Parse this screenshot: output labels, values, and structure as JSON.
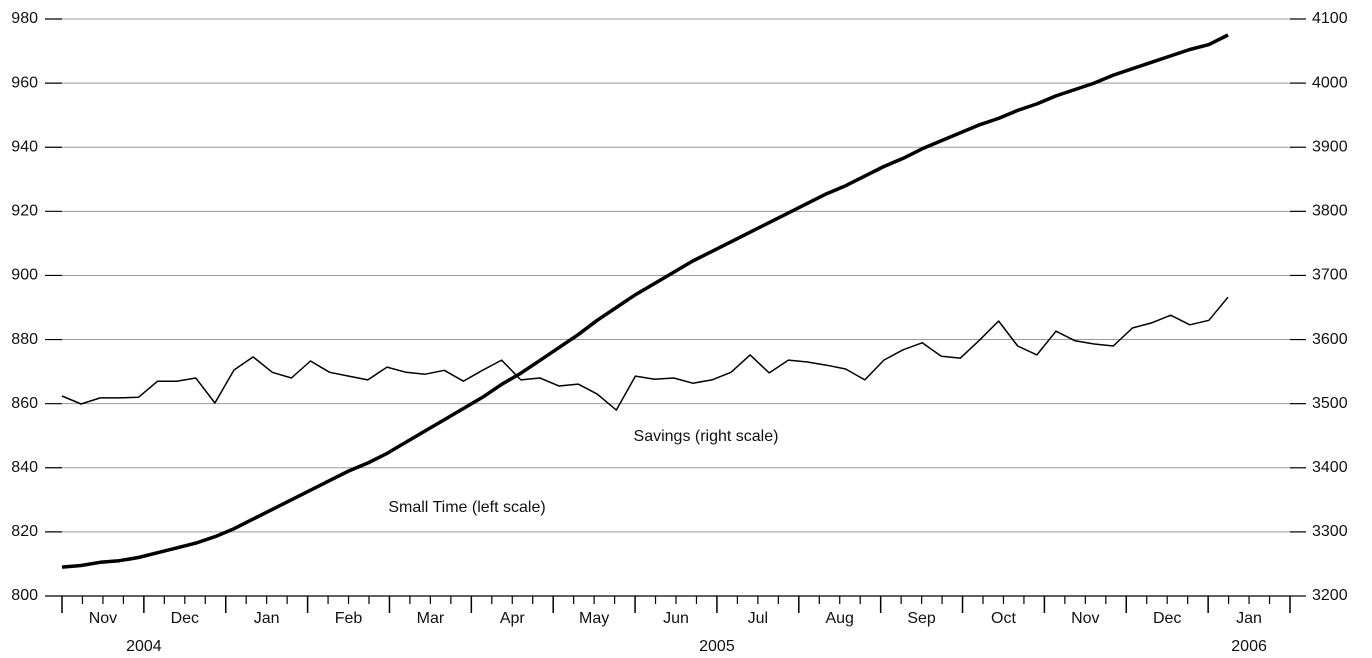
{
  "chart_data": {
    "type": "line",
    "categories": [
      null,
      null,
      null,
      null,
      null,
      null,
      null,
      null,
      null,
      null,
      null,
      null,
      null,
      null,
      null,
      null,
      null,
      null,
      null,
      null,
      null,
      null,
      null,
      null,
      null,
      null,
      null,
      null,
      null,
      null,
      null,
      null,
      null,
      null,
      null,
      null,
      null,
      null,
      null,
      null,
      null,
      null,
      null,
      null,
      null,
      null,
      null,
      null,
      null,
      null,
      null,
      null,
      null,
      null,
      null,
      null,
      null,
      null,
      null,
      null,
      null,
      null
    ],
    "x_months": [
      "Nov",
      "Dec",
      "Jan",
      "Feb",
      "Mar",
      "Apr",
      "May",
      "Jun",
      "Jul",
      "Aug",
      "Sep",
      "Oct",
      "Nov",
      "Dec",
      "Jan"
    ],
    "x_years": [
      "2004",
      "2005",
      "2006"
    ],
    "series": [
      {
        "name": "Small Time (left scale)",
        "color": "#000000",
        "axis": "y",
        "values": [
          809,
          809.5,
          810.5,
          811,
          812,
          813.5,
          815,
          816.5,
          818.5,
          821,
          824,
          827,
          830,
          833,
          836,
          839,
          841.5,
          844.5,
          848,
          851.5,
          855,
          858.5,
          862,
          866,
          869.5,
          873.5,
          877.5,
          881.5,
          886,
          890,
          894,
          897.5,
          901,
          904.5,
          907.5,
          910.5,
          913.5,
          916.5,
          919.5,
          922.5,
          925.5,
          928,
          931,
          934,
          936.5,
          939.5,
          942,
          944.5,
          947,
          949,
          951.5,
          953.5,
          956,
          958,
          960,
          962.5,
          964.5,
          966.5,
          968.5,
          970.5,
          972,
          975
        ]
      },
      {
        "name": "Savings (right scale)",
        "color": "#000000",
        "axis": "y2",
        "values": [
          3512,
          3499.5,
          3509,
          3509,
          3510,
          3535,
          3535,
          3540,
          3501,
          3552.5,
          3573,
          3549,
          3540,
          3566.5,
          3549,
          3543,
          3537,
          3557,
          3549,
          3546,
          3552,
          3535,
          3552,
          3568,
          3537,
          3540,
          3527.5,
          3530.5,
          3515,
          3490,
          3543,
          3538,
          3540,
          3532,
          3537,
          3549,
          3576,
          3548,
          3568,
          3565,
          3560,
          3554,
          3537,
          3568,
          3584,
          3595,
          3574,
          3571,
          3599,
          3629,
          3590,
          3576,
          3613,
          3598,
          3593,
          3590,
          3618,
          3626,
          3638,
          3623,
          3630,
          3666
        ]
      }
    ],
    "ylim": [
      800,
      980
    ],
    "yticks": [
      800,
      820,
      840,
      860,
      880,
      900,
      920,
      940,
      960,
      980
    ],
    "y2lim": [
      3200,
      4100
    ],
    "y2ticks": [
      3200,
      3300,
      3400,
      3500,
      3600,
      3700,
      3800,
      3900,
      4000,
      4100
    ],
    "grid": true
  }
}
